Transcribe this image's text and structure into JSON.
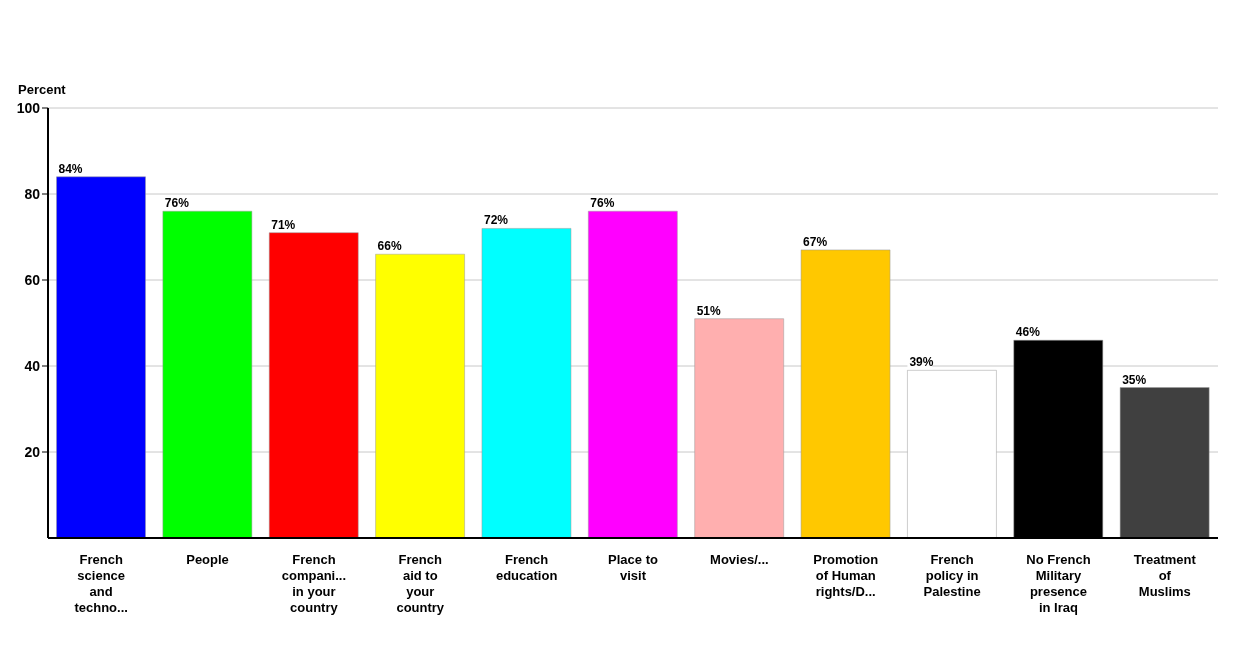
{
  "chart_data": {
    "type": "bar",
    "ylabel": "Percent",
    "categories": [
      "French science and techno...",
      "People",
      "French compani... in your country",
      "French aid to your country",
      "French education",
      "Place to visit",
      "Movies/...",
      "Promotion of Human rights/D...",
      "French policy in Palestine",
      "No French Military presence in Iraq",
      "Treatment of Muslims"
    ],
    "values": [
      84,
      76,
      71,
      66,
      72,
      76,
      51,
      67,
      39,
      46,
      35
    ],
    "value_labels": [
      "84%",
      "76%",
      "71%",
      "66%",
      "72%",
      "76%",
      "51%",
      "67%",
      "39%",
      "46%",
      "35%"
    ],
    "colors": [
      "#0000ff",
      "#00ff00",
      "#ff0000",
      "#ffff00",
      "#00ffff",
      "#ff00ff",
      "#ffafaf",
      "#ffc800",
      "#ffffff",
      "#000000",
      "#404040"
    ],
    "ylim": [
      0,
      100
    ],
    "yticks": [
      20,
      40,
      60,
      80,
      100
    ],
    "grid": "y"
  }
}
